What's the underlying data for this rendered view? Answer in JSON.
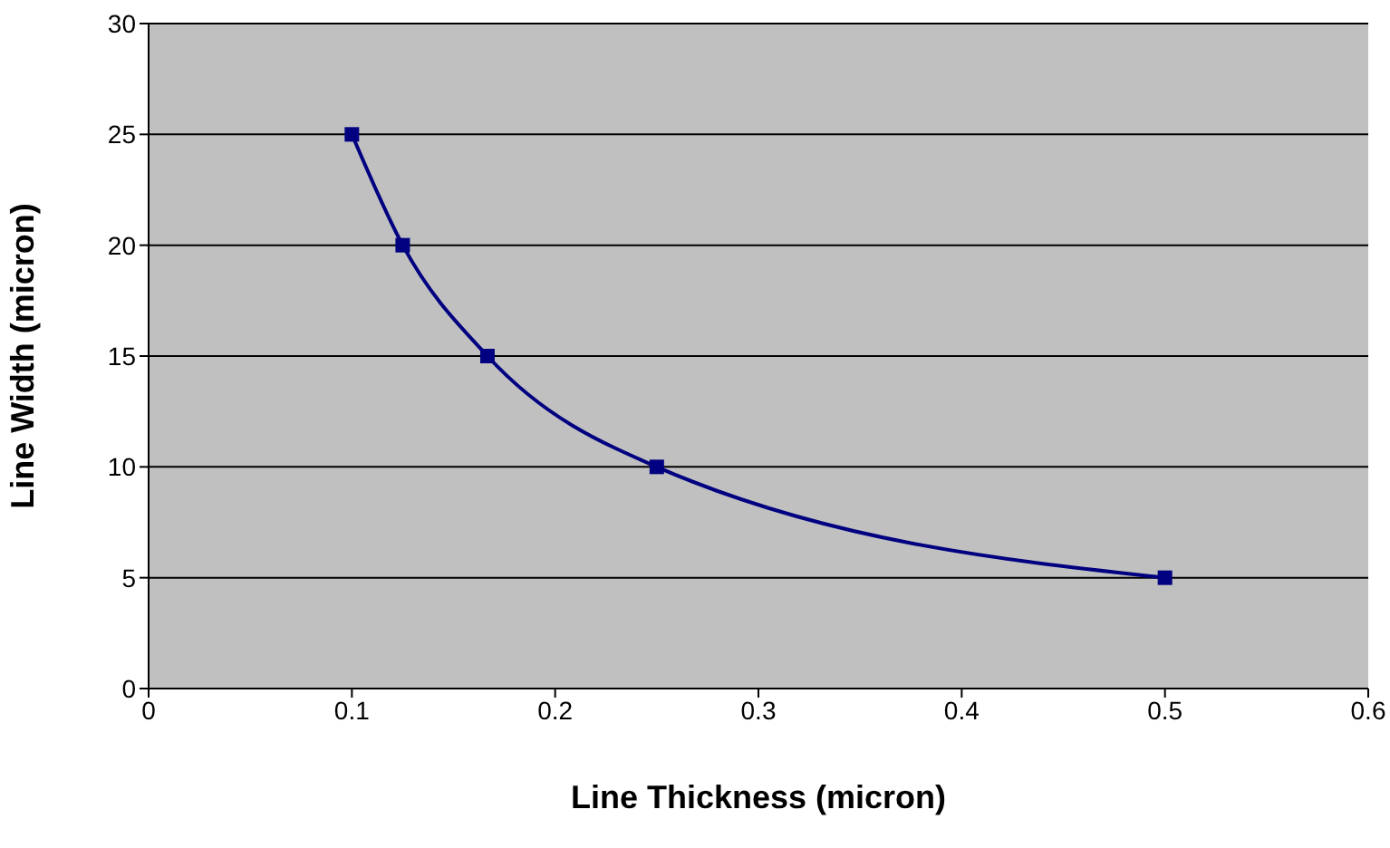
{
  "chart_data": {
    "type": "line",
    "xlabel": "Line Thickness (micron)",
    "ylabel": "Line Width (micron)",
    "x": [
      0.1,
      0.125,
      0.1667,
      0.25,
      0.5
    ],
    "series": [
      {
        "color": "#000080",
        "values": [
          25,
          20,
          15,
          10,
          5
        ]
      }
    ],
    "xlim": [
      0,
      0.6
    ],
    "xticks": [
      0,
      0.1,
      0.2,
      0.3,
      0.4,
      0.5,
      0.6
    ],
    "ylim": [
      0,
      30
    ],
    "yticks": [
      0,
      5,
      10,
      15,
      20,
      25,
      30
    ],
    "grid": "y",
    "legend": false,
    "marker": "square",
    "line_style": "solid"
  }
}
